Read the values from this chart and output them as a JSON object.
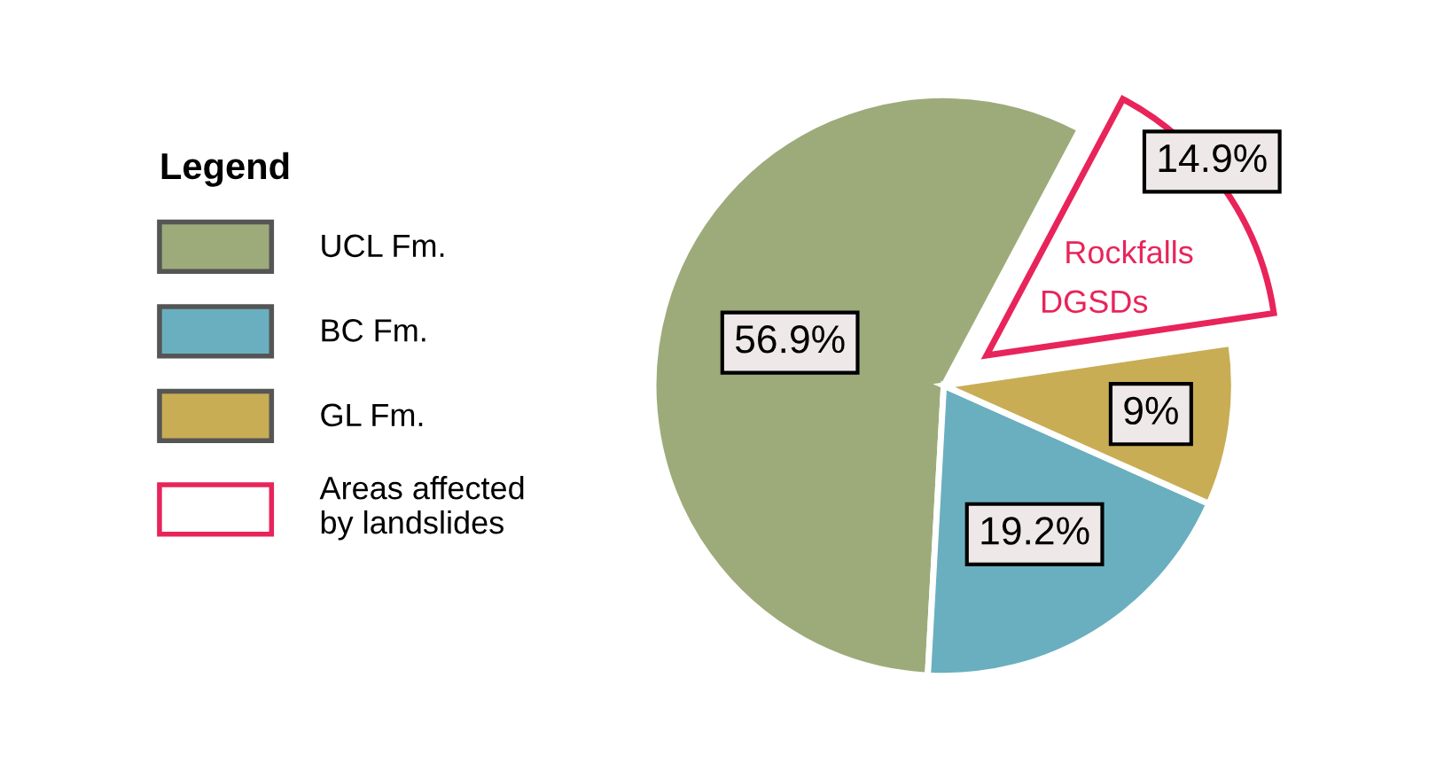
{
  "chart_data": {
    "type": "pie",
    "legend_title": "Legend",
    "categories": [
      "UCL Fm.",
      "BC Fm.",
      "GL Fm.",
      "Areas affected\nby landslides"
    ],
    "values": [
      56.9,
      19.2,
      9,
      14.9
    ],
    "colors": [
      "#9dab7a",
      "#6aafbf",
      "#c8ad55",
      "#ffffff"
    ],
    "value_labels": [
      "56.9%",
      "19.2%",
      "9%",
      "14.9%"
    ],
    "annotations": [
      "Rockfalls",
      "DGSDs"
    ],
    "legend": "left"
  }
}
